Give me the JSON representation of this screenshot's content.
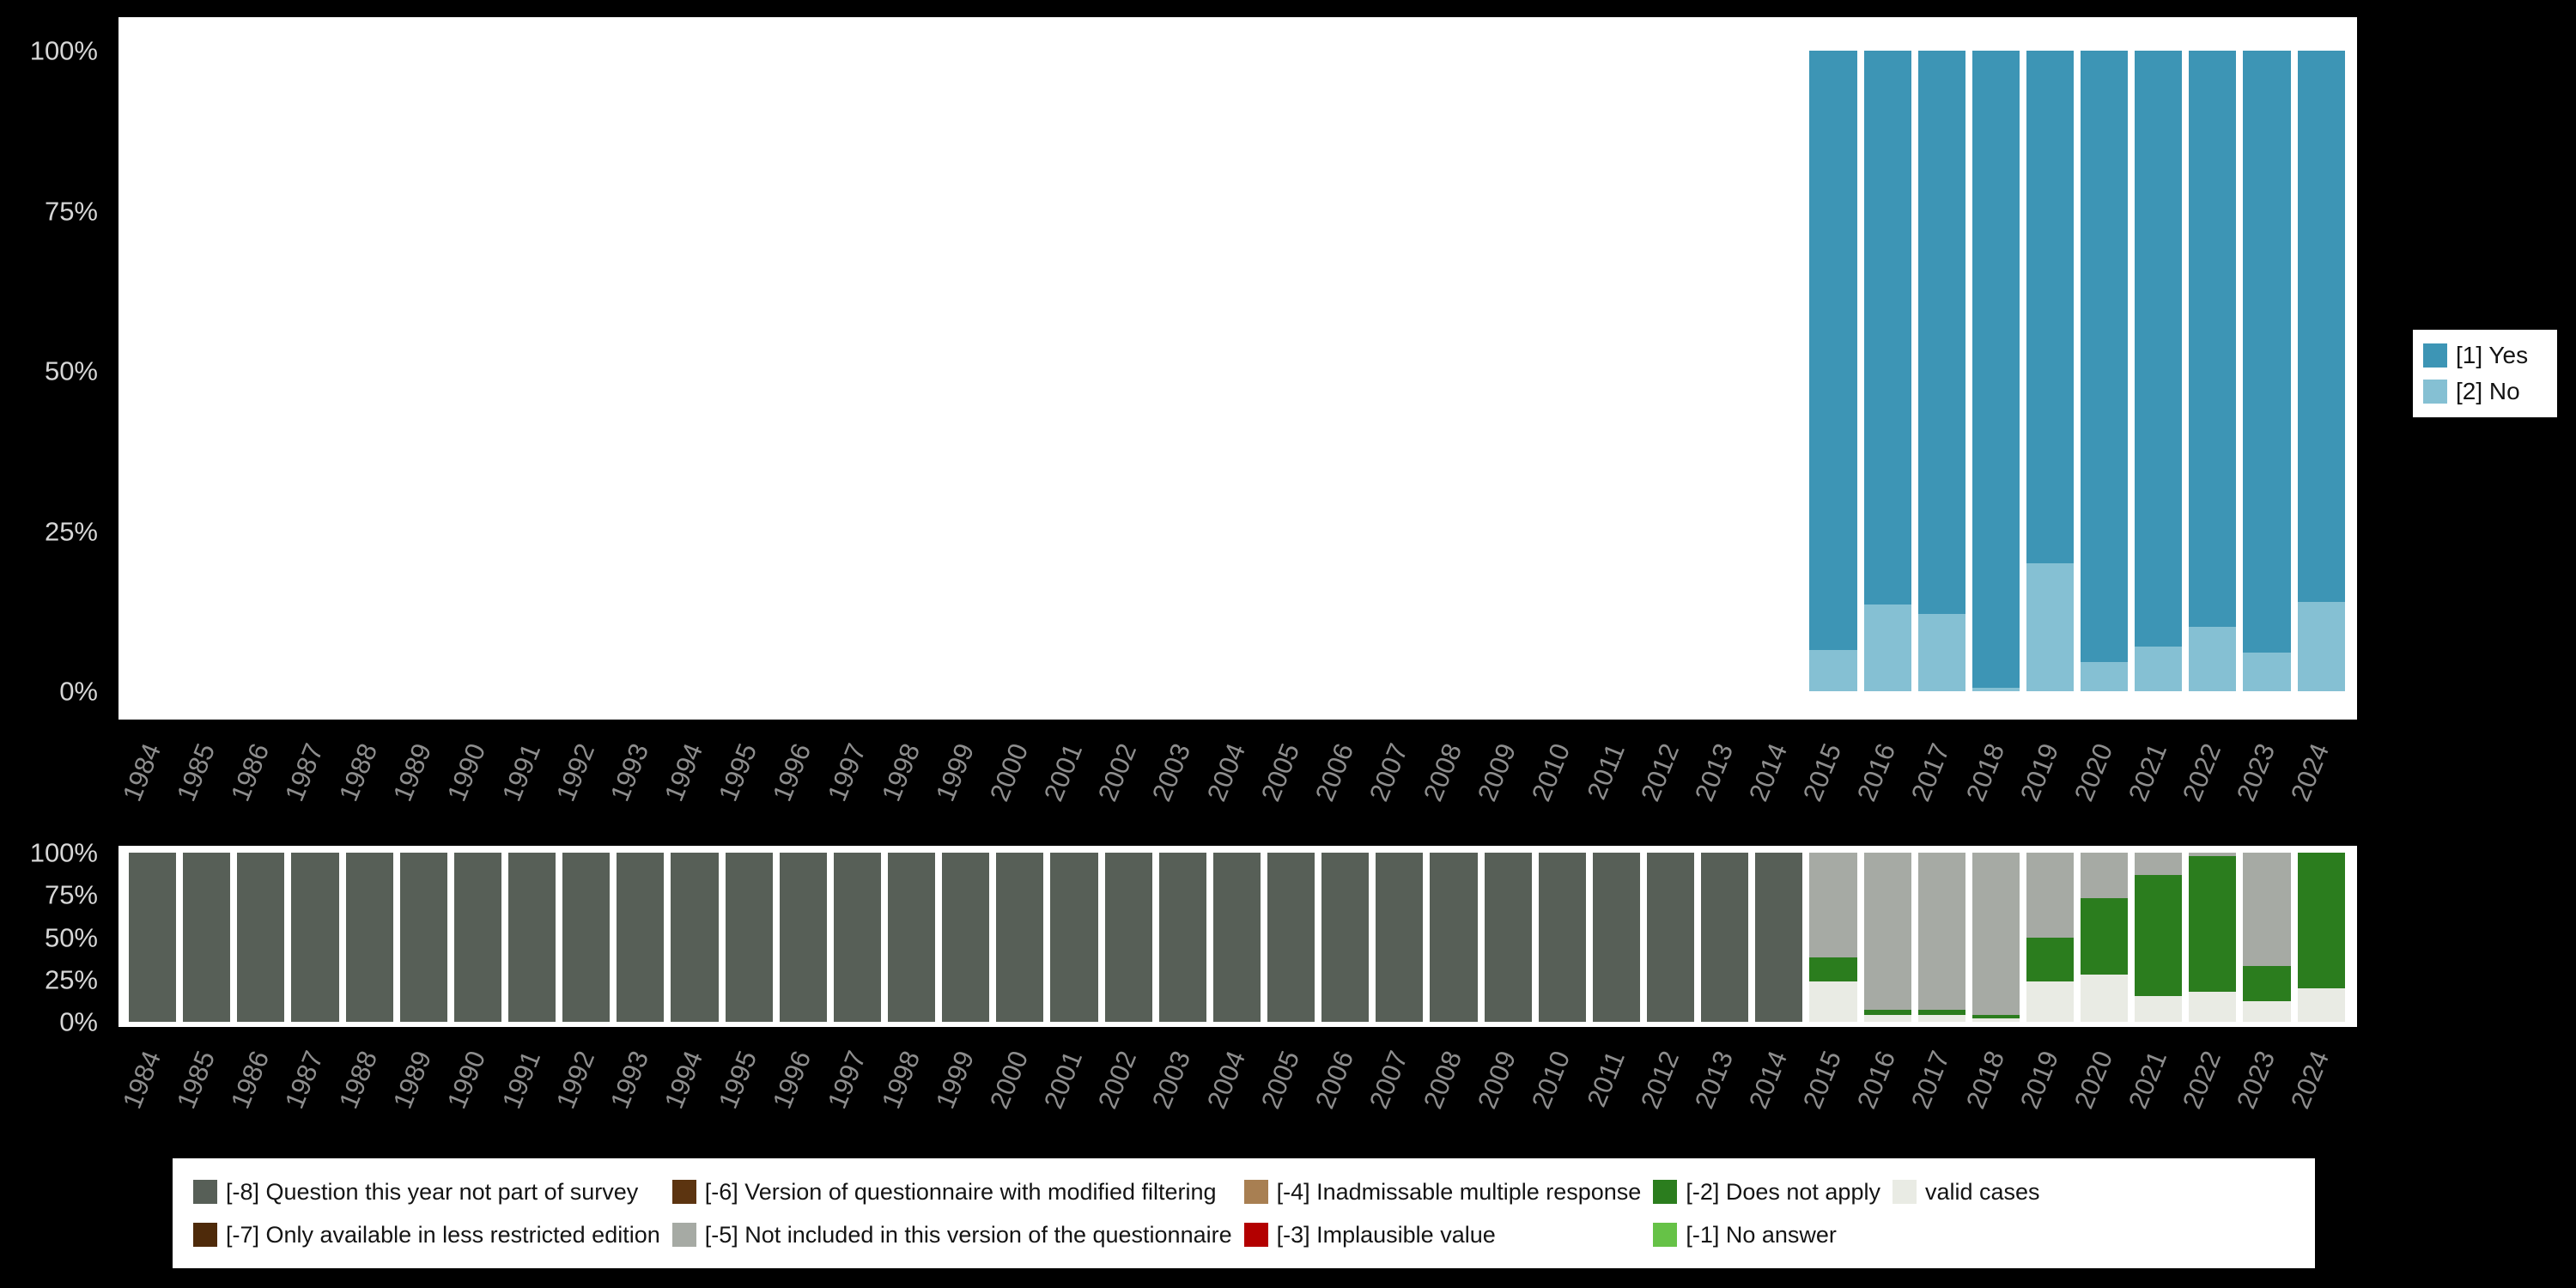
{
  "page": {
    "background": "#000000",
    "panel_background": "#FFFFFF"
  },
  "colors": {
    "yes": "#3D95B5",
    "no": "#85C0D3",
    "-8": "#575F57",
    "-7": "#4E2A0A",
    "-6": "#5C3410",
    "-5": "#A6AAA4",
    "-4": "#A87F52",
    "-3": "#B30000",
    "-2": "#2B7D1E",
    "-1": "#66C247",
    "valid": "#E9EBE4"
  },
  "axis": {
    "y_ticks": [
      "100%",
      "75%",
      "50%",
      "25%",
      "0%"
    ],
    "tick_label_color": "#D6D6D6",
    "year_label_color": "#8E8E8E"
  },
  "years": [
    "1984",
    "1985",
    "1986",
    "1987",
    "1988",
    "1989",
    "1990",
    "1991",
    "1992",
    "1993",
    "1994",
    "1995",
    "1996",
    "1997",
    "1998",
    "1999",
    "2000",
    "2001",
    "2002",
    "2003",
    "2004",
    "2005",
    "2006",
    "2007",
    "2008",
    "2009",
    "2010",
    "2011",
    "2012",
    "2013",
    "2014",
    "2015",
    "2016",
    "2017",
    "2018",
    "2019",
    "2020",
    "2021",
    "2022",
    "2023",
    "2024"
  ],
  "chart_data": [
    {
      "id": "responses-by-year",
      "type": "bar",
      "stacked": true,
      "unit": "percent",
      "ylim": [
        0,
        100
      ],
      "y_ticks": [
        "100%",
        "75%",
        "50%",
        "25%",
        "0%"
      ],
      "legend_position": "right",
      "categories": [
        "1984",
        "1985",
        "1986",
        "1987",
        "1988",
        "1989",
        "1990",
        "1991",
        "1992",
        "1993",
        "1994",
        "1995",
        "1996",
        "1997",
        "1998",
        "1999",
        "2000",
        "2001",
        "2002",
        "2003",
        "2004",
        "2005",
        "2006",
        "2007",
        "2008",
        "2009",
        "2010",
        "2011",
        "2012",
        "2013",
        "2014",
        "2015",
        "2016",
        "2017",
        "2018",
        "2019",
        "2020",
        "2021",
        "2022",
        "2023",
        "2024"
      ],
      "series": [
        {
          "name": "[1] Yes",
          "key": "yes"
        },
        {
          "name": "[2] No",
          "key": "no"
        }
      ],
      "stacks": {
        "2015": [
          [
            "yes",
            93.5
          ],
          [
            "no",
            6.5
          ]
        ],
        "2016": [
          [
            "yes",
            86.5
          ],
          [
            "no",
            13.5
          ]
        ],
        "2017": [
          [
            "yes",
            88
          ],
          [
            "no",
            12
          ]
        ],
        "2018": [
          [
            "yes",
            99.5
          ],
          [
            "no",
            0.5
          ]
        ],
        "2019": [
          [
            "yes",
            80
          ],
          [
            "no",
            20
          ]
        ],
        "2020": [
          [
            "yes",
            95.5
          ],
          [
            "no",
            4.5
          ]
        ],
        "2021": [
          [
            "yes",
            93
          ],
          [
            "no",
            7
          ]
        ],
        "2022": [
          [
            "yes",
            90
          ],
          [
            "no",
            10
          ]
        ],
        "2023": [
          [
            "yes",
            94
          ],
          [
            "no",
            6
          ]
        ],
        "2024": [
          [
            "yes",
            86
          ],
          [
            "no",
            14
          ]
        ]
      }
    },
    {
      "id": "missing-values-by-year",
      "type": "bar",
      "stacked": true,
      "unit": "percent",
      "ylim": [
        0,
        100
      ],
      "y_ticks": [
        "100%",
        "75%",
        "50%",
        "25%",
        "0%"
      ],
      "legend_position": "bottom",
      "categories": [
        "1984",
        "1985",
        "1986",
        "1987",
        "1988",
        "1989",
        "1990",
        "1991",
        "1992",
        "1993",
        "1994",
        "1995",
        "1996",
        "1997",
        "1998",
        "1999",
        "2000",
        "2001",
        "2002",
        "2003",
        "2004",
        "2005",
        "2006",
        "2007",
        "2008",
        "2009",
        "2010",
        "2011",
        "2012",
        "2013",
        "2014",
        "2015",
        "2016",
        "2017",
        "2018",
        "2019",
        "2020",
        "2021",
        "2022",
        "2023",
        "2024"
      ],
      "stacks": {
        "1984": [
          [
            "-8",
            100
          ]
        ],
        "1985": [
          [
            "-8",
            100
          ]
        ],
        "1986": [
          [
            "-8",
            100
          ]
        ],
        "1987": [
          [
            "-8",
            100
          ]
        ],
        "1988": [
          [
            "-8",
            100
          ]
        ],
        "1989": [
          [
            "-8",
            100
          ]
        ],
        "1990": [
          [
            "-8",
            100
          ]
        ],
        "1991": [
          [
            "-8",
            100
          ]
        ],
        "1992": [
          [
            "-8",
            100
          ]
        ],
        "1993": [
          [
            "-8",
            100
          ]
        ],
        "1994": [
          [
            "-8",
            100
          ]
        ],
        "1995": [
          [
            "-8",
            100
          ]
        ],
        "1996": [
          [
            "-8",
            100
          ]
        ],
        "1997": [
          [
            "-8",
            100
          ]
        ],
        "1998": [
          [
            "-8",
            100
          ]
        ],
        "1999": [
          [
            "-8",
            100
          ]
        ],
        "2000": [
          [
            "-8",
            100
          ]
        ],
        "2001": [
          [
            "-8",
            100
          ]
        ],
        "2002": [
          [
            "-8",
            100
          ]
        ],
        "2003": [
          [
            "-8",
            100
          ]
        ],
        "2004": [
          [
            "-8",
            100
          ]
        ],
        "2005": [
          [
            "-8",
            100
          ]
        ],
        "2006": [
          [
            "-8",
            100
          ]
        ],
        "2007": [
          [
            "-8",
            100
          ]
        ],
        "2008": [
          [
            "-8",
            100
          ]
        ],
        "2009": [
          [
            "-8",
            100
          ]
        ],
        "2010": [
          [
            "-8",
            100
          ]
        ],
        "2011": [
          [
            "-8",
            100
          ]
        ],
        "2012": [
          [
            "-8",
            100
          ]
        ],
        "2013": [
          [
            "-8",
            100
          ]
        ],
        "2014": [
          [
            "-8",
            100
          ]
        ],
        "2015": [
          [
            "-5",
            62
          ],
          [
            "-2",
            14
          ],
          [
            "valid",
            24
          ]
        ],
        "2016": [
          [
            "-5",
            93
          ],
          [
            "-2",
            3
          ],
          [
            "valid",
            4
          ]
        ],
        "2017": [
          [
            "-5",
            93
          ],
          [
            "-2",
            3
          ],
          [
            "valid",
            4
          ]
        ],
        "2018": [
          [
            "-5",
            96
          ],
          [
            "-2",
            2
          ],
          [
            "valid",
            2
          ]
        ],
        "2019": [
          [
            "-5",
            50
          ],
          [
            "-2",
            26
          ],
          [
            "valid",
            24
          ]
        ],
        "2020": [
          [
            "-5",
            27
          ],
          [
            "-2",
            45
          ],
          [
            "valid",
            28
          ]
        ],
        "2021": [
          [
            "-5",
            13
          ],
          [
            "-2",
            72
          ],
          [
            "valid",
            15
          ]
        ],
        "2022": [
          [
            "-5",
            2
          ],
          [
            "-2",
            80
          ],
          [
            "valid",
            18
          ]
        ],
        "2023": [
          [
            "-5",
            67
          ],
          [
            "-2",
            21
          ],
          [
            "valid",
            12
          ]
        ],
        "2024": [
          [
            "-2",
            80
          ],
          [
            "valid",
            20
          ]
        ]
      }
    }
  ],
  "legends": {
    "responses": [
      {
        "key": "yes",
        "label": "[1] Yes"
      },
      {
        "key": "no",
        "label": "[2] No"
      }
    ],
    "missing": [
      {
        "key": "-8",
        "label": "[-8] Question this year not part of survey"
      },
      {
        "key": "-7",
        "label": "[-7] Only available in less restricted edition"
      },
      {
        "key": "-6",
        "label": "[-6] Version of questionnaire with modified filtering"
      },
      {
        "key": "-5",
        "label": "[-5] Not included in this version of the questionnaire"
      },
      {
        "key": "-4",
        "label": "[-4] Inadmissable multiple response"
      },
      {
        "key": "-3",
        "label": "[-3] Implausible value"
      },
      {
        "key": "-2",
        "label": "[-2] Does not apply"
      },
      {
        "key": "-1",
        "label": "[-1] No answer"
      },
      {
        "key": "valid",
        "label": "valid cases"
      }
    ]
  }
}
